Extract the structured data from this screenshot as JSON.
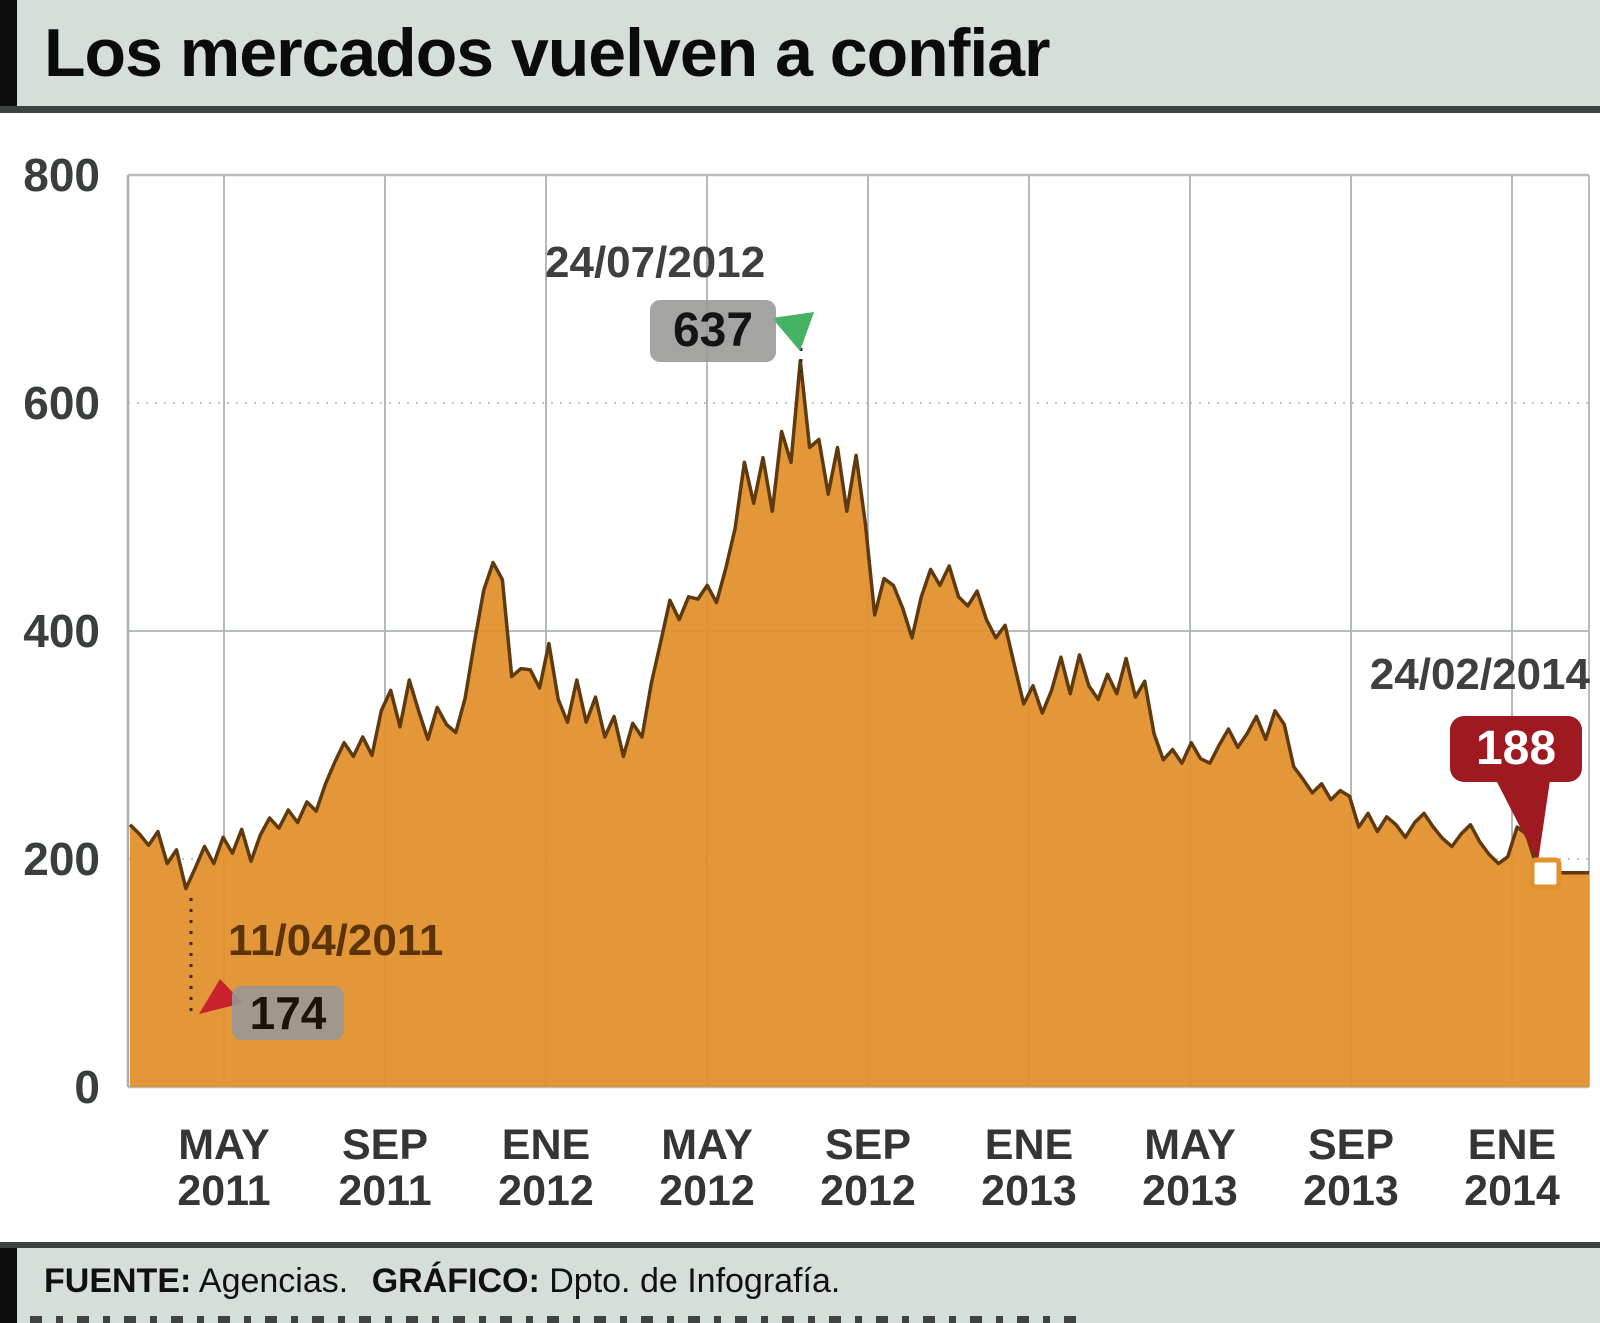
{
  "title": "Los mercados vuelven a confiar",
  "colors": {
    "band_bg": "#d6ded9",
    "area_fill": "#e2912d",
    "area_outline": "#5e3a0e",
    "callout_red": "#9e1a20",
    "arrow_green": "#45b264",
    "arrow_red": "#c8232c",
    "badge_gray": "#979795"
  },
  "chart_data": {
    "type": "area",
    "title": "Los mercados vuelven a confiar",
    "xlabel": "",
    "ylabel": "",
    "ylim": [
      0,
      800
    ],
    "grid": true,
    "y_ticks": [
      800,
      600,
      400,
      200,
      0
    ],
    "x_ticks": [
      {
        "month": "MAY",
        "year": "2011"
      },
      {
        "month": "SEP",
        "year": "2011"
      },
      {
        "month": "ENE",
        "year": "2012"
      },
      {
        "month": "MAY",
        "year": "2012"
      },
      {
        "month": "SEP",
        "year": "2012"
      },
      {
        "month": "ENE",
        "year": "2013"
      },
      {
        "month": "MAY",
        "year": "2013"
      },
      {
        "month": "SEP",
        "year": "2013"
      },
      {
        "month": "ENE",
        "year": "2014"
      }
    ],
    "series": [
      {
        "values": [
          230,
          222,
          212,
          224,
          196,
          208,
          174,
          192,
          211,
          196,
          219,
          205,
          226,
          198,
          221,
          236,
          227,
          243,
          232,
          250,
          242,
          266,
          285,
          302,
          290,
          307,
          291,
          330,
          348,
          316,
          357,
          330,
          305,
          333,
          318,
          311,
          341,
          390,
          436,
          460,
          445,
          360,
          367,
          366,
          350,
          389,
          340,
          320,
          357,
          320,
          342,
          307,
          325,
          290,
          319,
          307,
          354,
          390,
          427,
          410,
          430,
          428,
          440,
          425,
          455,
          490,
          548,
          512,
          552,
          505,
          575,
          548,
          637,
          561,
          568,
          520,
          561,
          505,
          554,
          494,
          414,
          446,
          440,
          420,
          394,
          430,
          454,
          440,
          457,
          430,
          422,
          435,
          410,
          394,
          405,
          370,
          336,
          352,
          328,
          348,
          377,
          345,
          379,
          352,
          340,
          362,
          345,
          376,
          342,
          356,
          310,
          287,
          296,
          284,
          302,
          288,
          284,
          300,
          314,
          298,
          310,
          325,
          305,
          330,
          318,
          281,
          270,
          258,
          266,
          252,
          260,
          255,
          228,
          240,
          224,
          237,
          230,
          219,
          232,
          240,
          228,
          218,
          211,
          222,
          230,
          215,
          204,
          196,
          202,
          228,
          222,
          196,
          188
        ]
      }
    ],
    "annotations": {
      "low": {
        "date": "11/04/2011",
        "value": 174
      },
      "peak": {
        "date": "24/07/2012",
        "value": 637
      },
      "last": {
        "date": "24/02/2014",
        "value": 188
      }
    }
  },
  "footer": {
    "source_label": "FUENTE:",
    "source_value": "Agencias.",
    "graphic_label": "GRÁFICO:",
    "graphic_value": "Dpto. de Infografía."
  }
}
